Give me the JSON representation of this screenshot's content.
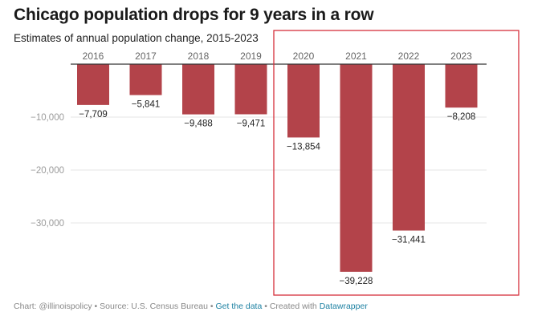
{
  "chart_data": {
    "type": "bar",
    "title": "Chicago population drops for 9 years in a row",
    "subtitle": "Estimates of annual population change, 2015-2023",
    "categories": [
      "2016",
      "2017",
      "2018",
      "2019",
      "2020",
      "2021",
      "2022",
      "2023"
    ],
    "values": [
      -7709,
      -5841,
      -9488,
      -9471,
      -13854,
      -39228,
      -31441,
      -8208
    ],
    "value_labels": [
      "−7,709",
      "−5,841",
      "−9,488",
      "−9,471",
      "−13,854",
      "−39,228",
      "−31,441",
      "−8,208"
    ],
    "y_ticks": [
      -10000,
      -20000,
      -30000
    ],
    "y_tick_labels": [
      "−10,000",
      "−20,000",
      "−30,000"
    ],
    "ylim": [
      -45000,
      0
    ],
    "xlabel": "",
    "ylabel": "",
    "grid": true,
    "bar_color": "#b3434a",
    "highlight_color": "#d6303b",
    "highlighted_categories": [
      "2020",
      "2021",
      "2022",
      "2023"
    ]
  },
  "footer": {
    "chart_credit": "Chart: @illinoispolicy",
    "source": "Source: U.S. Census Bureau",
    "get_data": "Get the data",
    "created_with": "Created with",
    "tool": "Datawrapper",
    "separator": "•"
  }
}
